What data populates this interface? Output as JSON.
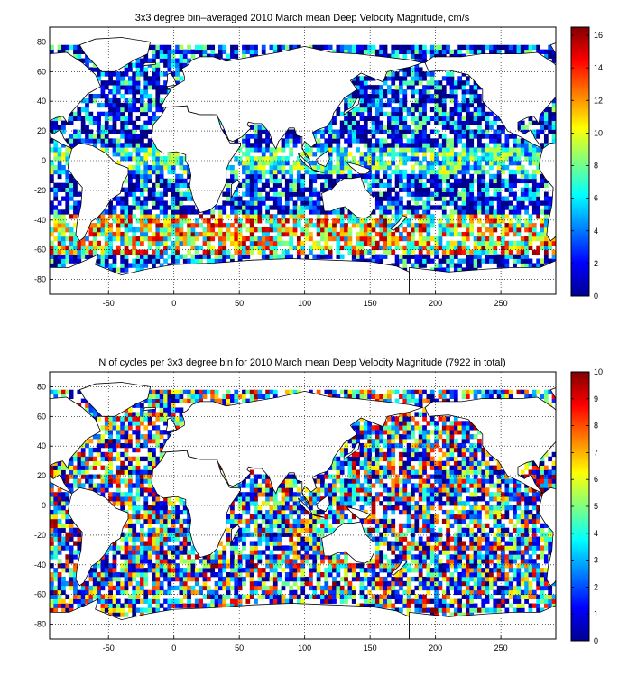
{
  "chart_data": [
    {
      "type": "heatmap",
      "title": "3x3 degree bin–averaged 2010 March mean Deep Velocity Magnitude, cm/s",
      "xlabel": "",
      "ylabel": "",
      "xlim": [
        -95,
        292
      ],
      "ylim": [
        -90,
        90
      ],
      "x_ticks": [
        -50,
        0,
        50,
        100,
        150,
        200,
        250
      ],
      "y_ticks": [
        80,
        60,
        40,
        20,
        0,
        -20,
        -40,
        -60,
        -80
      ],
      "bin_size_deg": 3,
      "grid": true,
      "colorbar": {
        "min": 0,
        "max": 16.5,
        "ticks": [
          0,
          2,
          4,
          6,
          8,
          10,
          12,
          14,
          16
        ],
        "colormap": "jet",
        "placement": "right"
      }
    },
    {
      "type": "heatmap",
      "title": "N of cycles per 3x3 degree bin for 2010 March mean Deep Velocity Magnitude (7922 in total)",
      "xlabel": "",
      "ylabel": "",
      "xlim": [
        -95,
        292
      ],
      "ylim": [
        -90,
        90
      ],
      "x_ticks": [
        -50,
        0,
        50,
        100,
        150,
        200,
        250
      ],
      "y_ticks": [
        80,
        60,
        40,
        20,
        0,
        -20,
        -40,
        -60,
        -80
      ],
      "bin_size_deg": 3,
      "grid": true,
      "colorbar": {
        "min": 0,
        "max": 10,
        "ticks": [
          0,
          1,
          2,
          3,
          4,
          5,
          6,
          7,
          8,
          9,
          10
        ],
        "colormap": "jet",
        "placement": "right"
      }
    }
  ]
}
